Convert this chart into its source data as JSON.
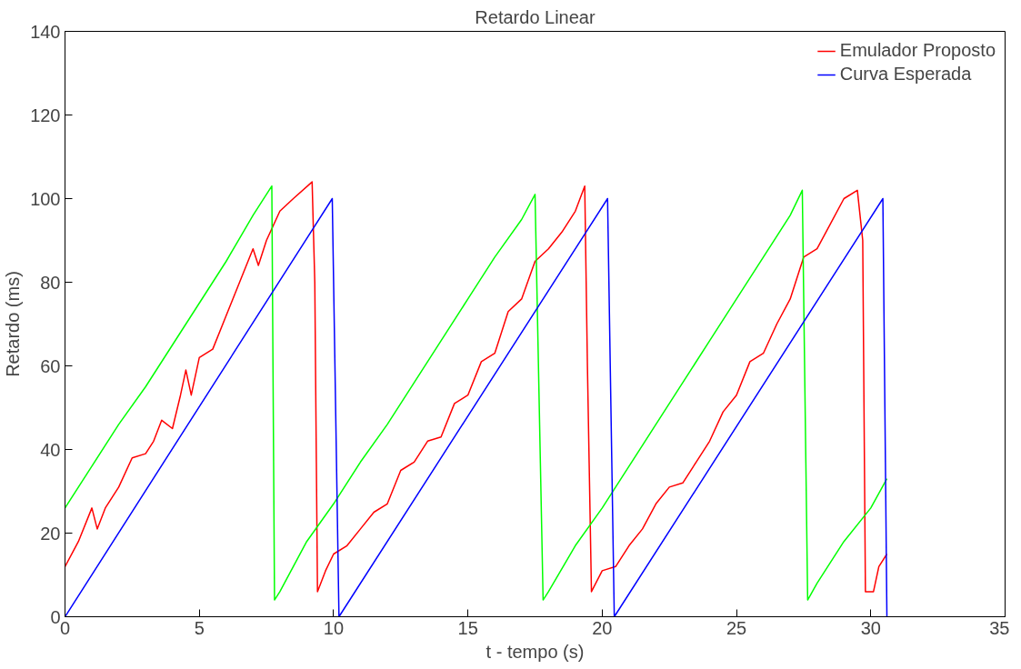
{
  "chart_data": {
    "type": "line",
    "title": "Retardo Linear",
    "xlabel": "t - tempo (s)",
    "ylabel": "Retardo (ms)",
    "xlim": [
      0,
      35
    ],
    "ylim": [
      0,
      140
    ],
    "xticks": [
      0,
      5,
      10,
      15,
      20,
      25,
      30,
      35
    ],
    "yticks": [
      0,
      20,
      40,
      60,
      80,
      100,
      120,
      140
    ],
    "grid": false,
    "legend": "top right",
    "marker": "none",
    "line_style": "solid",
    "series": [
      {
        "name": "Emulador Proposto",
        "color": "#ff0000",
        "x": [
          0,
          0.5,
          1,
          1.2,
          1.5,
          2,
          2.5,
          3,
          3.3,
          3.6,
          4,
          4.3,
          4.5,
          4.7,
          5,
          5.5,
          6,
          6.5,
          7,
          7.2,
          7.5,
          8,
          8.5,
          9.2,
          9.3,
          9.4,
          9.7,
          10,
          10.5,
          11,
          11.5,
          12,
          12.5,
          13,
          13.5,
          14,
          14.5,
          15,
          15.5,
          16,
          16.5,
          17,
          17.5,
          18,
          18.5,
          19,
          19.35,
          19.45,
          19.6,
          20,
          20.5,
          21,
          21.5,
          22,
          22.5,
          23,
          23.5,
          24,
          24.5,
          25,
          25.5,
          26,
          26.5,
          27,
          27.5,
          28,
          28.5,
          29,
          29.5,
          29.7,
          29.8,
          30.1,
          30.3,
          30.6
        ],
        "values": [
          12,
          18,
          26,
          21,
          26,
          31,
          38,
          39,
          42,
          47,
          45,
          53,
          59,
          53,
          62,
          64,
          72,
          80,
          88,
          84,
          90,
          97,
          100,
          104,
          80,
          6,
          11,
          15,
          17,
          21,
          25,
          27,
          35,
          37,
          42,
          43,
          51,
          53,
          61,
          63,
          73,
          76,
          85,
          88,
          92,
          97,
          103,
          60,
          6,
          11,
          12,
          17,
          21,
          27,
          31,
          32,
          37,
          42,
          49,
          53,
          61,
          63,
          70,
          76,
          86,
          88,
          94,
          100,
          102,
          90,
          6,
          6,
          12,
          15
        ]
      },
      {
        "color": "#00ff00",
        "x": [
          0,
          1,
          2,
          3,
          4,
          5,
          6,
          7,
          7.7,
          7.8,
          8,
          9,
          10,
          11,
          12,
          13,
          14,
          15,
          16,
          17,
          17.5,
          17.8,
          18,
          19,
          20,
          21,
          22,
          23,
          24,
          25,
          26,
          27,
          27.45,
          27.65,
          28,
          29,
          30,
          30.6
        ],
        "values": [
          26,
          36,
          46,
          55,
          65,
          75,
          85,
          96,
          103,
          4,
          6,
          18,
          27,
          37,
          46,
          56,
          66,
          76,
          86,
          95,
          101,
          4,
          6,
          17,
          26,
          36,
          46,
          56,
          66,
          76,
          86,
          96,
          102,
          4,
          8,
          18,
          26,
          33
        ]
      },
      {
        "name": "Curva Esperada",
        "color": "#0000ff",
        "x": [
          0,
          9.95,
          10.2,
          20.2,
          20.45,
          30.45,
          30.6
        ],
        "values": [
          0,
          100,
          0,
          100,
          0,
          100,
          0
        ]
      }
    ]
  }
}
